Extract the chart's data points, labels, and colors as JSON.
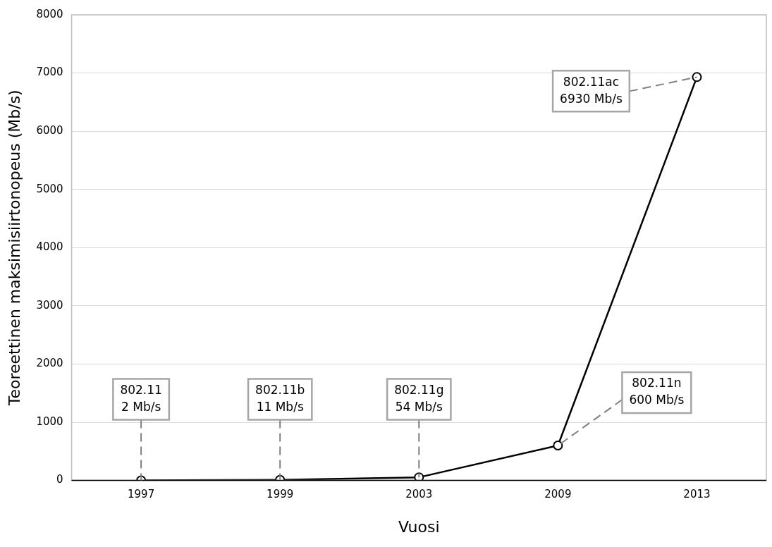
{
  "chart_data": {
    "type": "line",
    "xlabel": "Vuosi",
    "ylabel": "Teoreettinen maksimisiirtonopeus (Mb/s)",
    "categories": [
      "1997",
      "1999",
      "2003",
      "2009",
      "2013"
    ],
    "series": [
      {
        "color": "#000000",
        "values": [
          2,
          11,
          54,
          600,
          6930
        ]
      }
    ],
    "ylim": [
      0,
      8000
    ],
    "yticks": [
      0,
      1000,
      2000,
      3000,
      4000,
      5000,
      6000,
      7000,
      8000
    ],
    "grid": "y",
    "legend": false,
    "marker": "circle",
    "line_style": "solid",
    "annotations": [
      {
        "text": "802.11\n2 Mb/s",
        "x": "1997",
        "y": 2
      },
      {
        "text": "802.11b\n11 Mb/s",
        "x": "1999",
        "y": 11
      },
      {
        "text": "802.11g\n54 Mb/s",
        "x": "2003",
        "y": 54
      },
      {
        "text": "802.11n\n600 Mb/s",
        "x": "2009",
        "y": 600
      },
      {
        "text": "802.11ac\n6930 Mb/s",
        "x": "2013",
        "y": 6930
      }
    ]
  }
}
